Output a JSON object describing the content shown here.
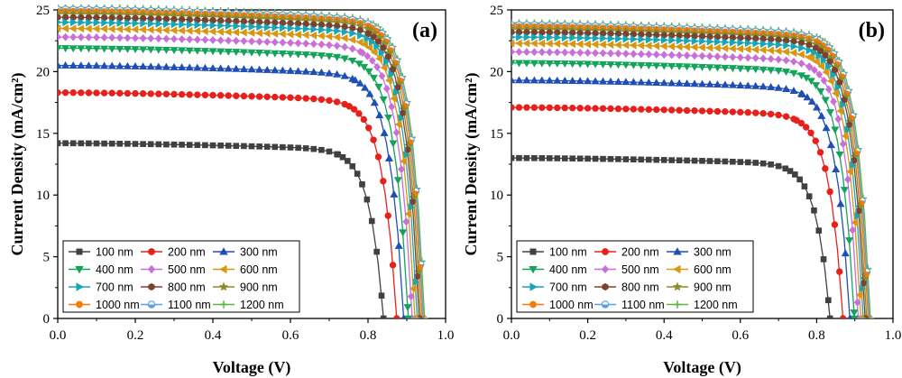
{
  "figure": {
    "series_styles": [
      {
        "name": "100 nm",
        "color": "#404040",
        "marker": "square"
      },
      {
        "name": "200 nm",
        "color": "#e8201c",
        "marker": "circle"
      },
      {
        "name": "300 nm",
        "color": "#1f4fb4",
        "marker": "triangle-up"
      },
      {
        "name": "400 nm",
        "color": "#13a35a",
        "marker": "triangle-down"
      },
      {
        "name": "500 nm",
        "color": "#c86fd8",
        "marker": "diamond"
      },
      {
        "name": "600 nm",
        "color": "#d99611",
        "marker": "triangle-left"
      },
      {
        "name": "700 nm",
        "color": "#17a6b6",
        "marker": "triangle-right"
      },
      {
        "name": "800 nm",
        "color": "#7a4330",
        "marker": "hexagon"
      },
      {
        "name": "900 nm",
        "color": "#8c8c2a",
        "marker": "star"
      },
      {
        "name": "1000 nm",
        "color": "#f07c0c",
        "marker": "circle"
      },
      {
        "name": "1100 nm",
        "color": "#5aa0dc",
        "marker": "half-circle"
      },
      {
        "name": "1200 nm",
        "color": "#62b24a",
        "marker": "plus"
      }
    ]
  },
  "chart_data": [
    {
      "type": "line",
      "panel_label": "(a)",
      "xlabel": "Voltage (V)",
      "ylabel": "Current Density (mA/cm²)",
      "xlim": [
        0.0,
        1.0
      ],
      "ylim": [
        0,
        25
      ],
      "xticks": [
        "0.0",
        "0.2",
        "0.4",
        "0.6",
        "0.8",
        "1.0"
      ],
      "yticks": [
        "0",
        "5",
        "10",
        "15",
        "20",
        "25"
      ],
      "legend_position": "bottom-left",
      "series": [
        {
          "name": "100 nm",
          "jsc": 14.2,
          "voc": 0.84
        },
        {
          "name": "200 nm",
          "jsc": 18.3,
          "voc": 0.874
        },
        {
          "name": "300 nm",
          "jsc": 20.5,
          "voc": 0.892
        },
        {
          "name": "400 nm",
          "jsc": 21.9,
          "voc": 0.904
        },
        {
          "name": "500 nm",
          "jsc": 22.8,
          "voc": 0.914
        },
        {
          "name": "600 nm",
          "jsc": 23.5,
          "voc": 0.921
        },
        {
          "name": "700 nm",
          "jsc": 24.0,
          "voc": 0.927
        },
        {
          "name": "800 nm",
          "jsc": 24.4,
          "voc": 0.932
        },
        {
          "name": "900 nm",
          "jsc": 24.7,
          "voc": 0.936
        },
        {
          "name": "1000 nm",
          "jsc": 24.9,
          "voc": 0.94
        },
        {
          "name": "1100 nm",
          "jsc": 25.05,
          "voc": 0.943
        },
        {
          "name": "1200 nm",
          "jsc": 25.2,
          "voc": 0.946
        }
      ]
    },
    {
      "type": "line",
      "panel_label": "(b)",
      "xlabel": "Voltage (V)",
      "ylabel": "Current Density (mA/cm²)",
      "xlim": [
        0.0,
        1.0
      ],
      "ylim": [
        0,
        25
      ],
      "xticks": [
        "0.0",
        "0.2",
        "0.4",
        "0.6",
        "0.8",
        "1.0"
      ],
      "yticks": [
        "0",
        "5",
        "10",
        "15",
        "20",
        "25"
      ],
      "legend_position": "bottom-left",
      "series": [
        {
          "name": "100 nm",
          "jsc": 13.0,
          "voc": 0.835
        },
        {
          "name": "200 nm",
          "jsc": 17.1,
          "voc": 0.869
        },
        {
          "name": "300 nm",
          "jsc": 19.3,
          "voc": 0.887
        },
        {
          "name": "400 nm",
          "jsc": 20.7,
          "voc": 0.899
        },
        {
          "name": "500 nm",
          "jsc": 21.6,
          "voc": 0.909
        },
        {
          "name": "600 nm",
          "jsc": 22.3,
          "voc": 0.916
        },
        {
          "name": "700 nm",
          "jsc": 22.8,
          "voc": 0.922
        },
        {
          "name": "800 nm",
          "jsc": 23.2,
          "voc": 0.927
        },
        {
          "name": "900 nm",
          "jsc": 23.45,
          "voc": 0.931
        },
        {
          "name": "1000 nm",
          "jsc": 23.65,
          "voc": 0.935
        },
        {
          "name": "1100 nm",
          "jsc": 23.8,
          "voc": 0.938
        },
        {
          "name": "1200 nm",
          "jsc": 23.95,
          "voc": 0.941
        }
      ]
    }
  ]
}
